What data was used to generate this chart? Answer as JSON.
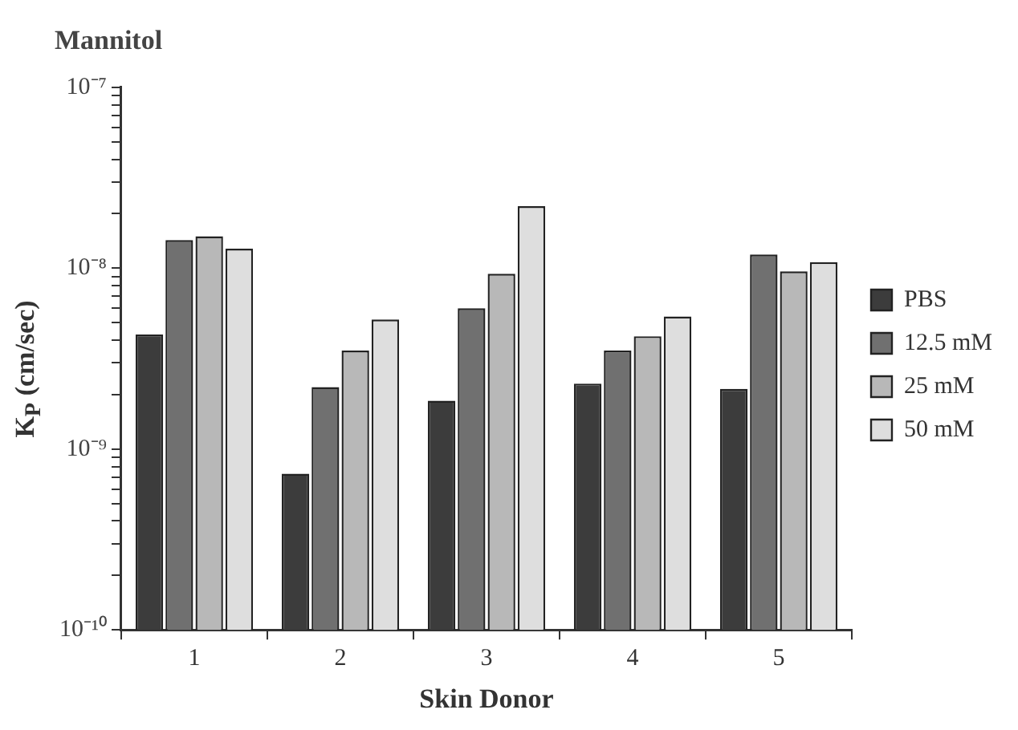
{
  "chart_data": {
    "type": "bar",
    "title": "Mannitol",
    "xlabel": "Skin Donor",
    "ylabel": "K$_{P}$  (cm/sec)",
    "categories": [
      "1",
      "2",
      "3",
      "4",
      "5"
    ],
    "series": [
      {
        "name": "PBS",
        "color": "#3c3c3c",
        "values": [
          4.3e-09,
          7.3e-10,
          1.85e-09,
          2.3e-09,
          2.15e-09
        ]
      },
      {
        "name": "12.5 mM",
        "color": "#707070",
        "values": [
          1.43e-08,
          2.2e-09,
          6e-09,
          3.5e-09,
          1.19e-08
        ]
      },
      {
        "name": "25 mM",
        "color": "#b8b8b8",
        "values": [
          1.5e-08,
          3.5e-09,
          9.3e-09,
          4.2e-09,
          9.6e-09
        ]
      },
      {
        "name": "50 mM",
        "color": "#dedede",
        "values": [
          1.28e-08,
          5.2e-09,
          2.2e-08,
          5.4e-09,
          1.08e-08
        ]
      }
    ],
    "log": "y",
    "ylim": [
      1e-10,
      1e-07
    ],
    "yticks": [
      {
        "value": 1e-10,
        "label": "10⁻¹⁰"
      },
      {
        "value": 2e-10,
        "label": null
      },
      {
        "value": 3e-10,
        "label": null
      },
      {
        "value": 4e-10,
        "label": null
      },
      {
        "value": 5e-10,
        "label": null
      },
      {
        "value": 6e-10,
        "label": null
      },
      {
        "value": 7e-10,
        "label": null
      },
      {
        "value": 8e-10,
        "label": null
      },
      {
        "value": 9e-10,
        "label": null
      },
      {
        "value": 1e-09,
        "label": "10⁻⁹"
      },
      {
        "value": 2e-09,
        "label": null
      },
      {
        "value": 3e-09,
        "label": null
      },
      {
        "value": 4e-09,
        "label": null
      },
      {
        "value": 5e-09,
        "label": null
      },
      {
        "value": 6e-09,
        "label": null
      },
      {
        "value": 7e-09,
        "label": null
      },
      {
        "value": 8e-09,
        "label": null
      },
      {
        "value": 9e-09,
        "label": null
      },
      {
        "value": 1e-08,
        "label": "10⁻⁸"
      },
      {
        "value": 2e-08,
        "label": null
      },
      {
        "value": 3e-08,
        "label": null
      },
      {
        "value": 4e-08,
        "label": null
      },
      {
        "value": 5e-08,
        "label": null
      },
      {
        "value": 6e-08,
        "label": null
      },
      {
        "value": 7e-08,
        "label": null
      },
      {
        "value": 8e-08,
        "label": null
      },
      {
        "value": 9e-08,
        "label": null
      },
      {
        "value": 1e-07,
        "label": "10⁻⁷"
      }
    ],
    "grid": false,
    "legend": "right"
  }
}
